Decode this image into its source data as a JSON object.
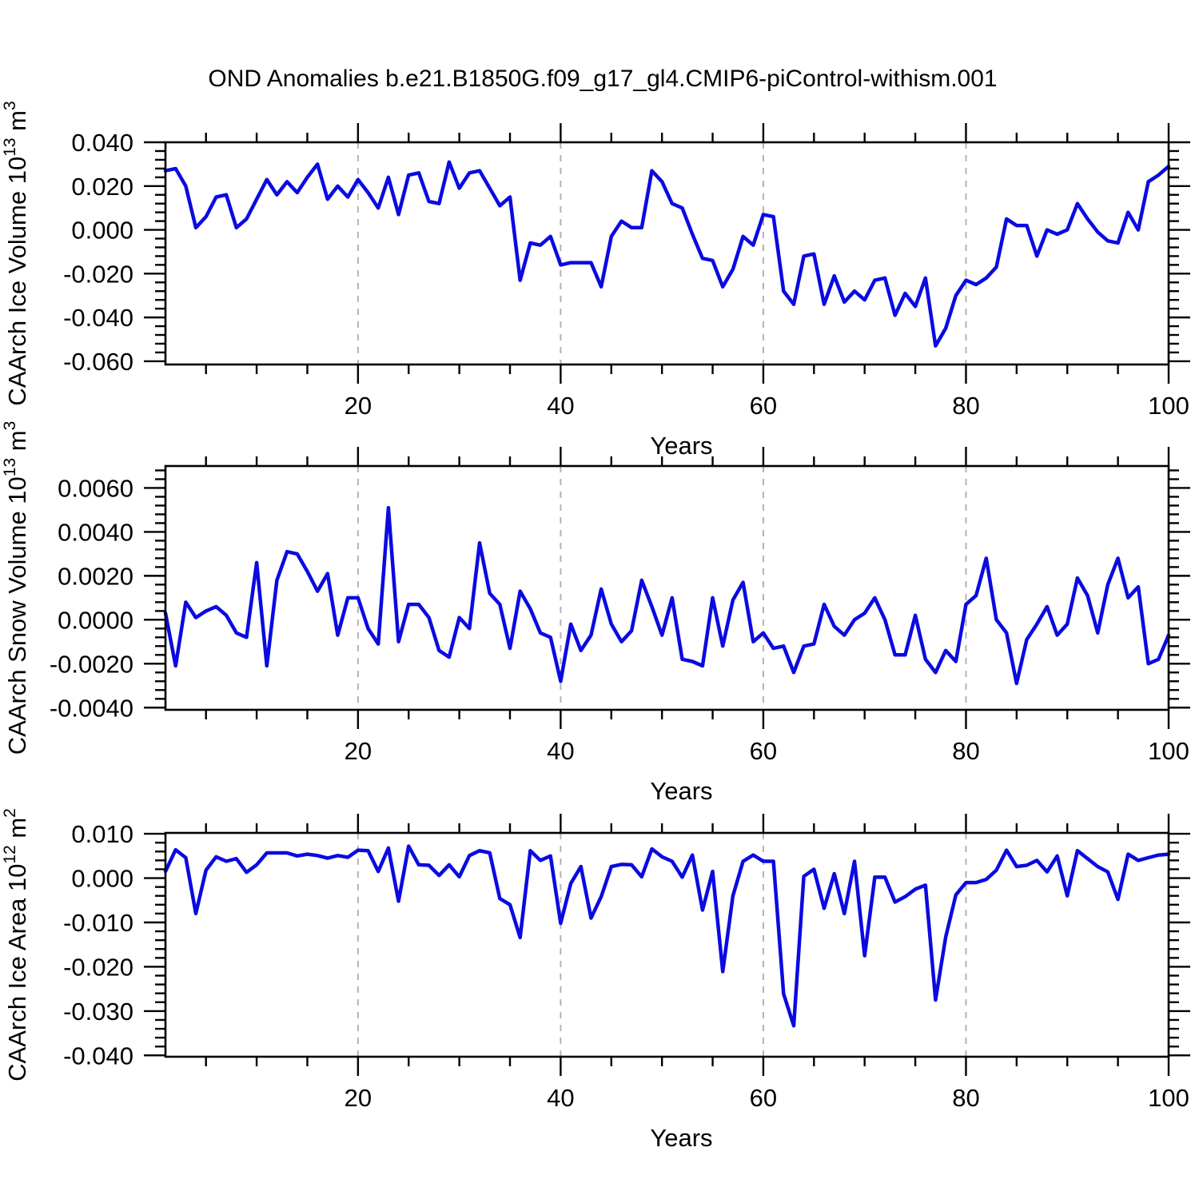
{
  "title": "OND Anomalies b.e21.B1850G.f09_g17_gl4.CMIP6-piControl-withism.001",
  "colors": {
    "line": "#0a0ae1",
    "grid": "#b3b3b3",
    "axis": "#000000",
    "background": "#ffffff"
  },
  "chart_data": [
    {
      "type": "line",
      "title": "",
      "xlabel": "Years",
      "ylabel_parts": {
        "pre": "CAArch Ice Volume 10",
        "sup1": "13",
        "mid": " m",
        "sup2": "3"
      },
      "x_start": 1,
      "x_step": 1,
      "xlim": [
        1,
        100
      ],
      "ylim": [
        -0.0615,
        0.04
      ],
      "ytick_major": [
        0.04,
        0.02,
        0.0,
        -0.02,
        -0.04,
        -0.06
      ],
      "ytick_minor_step": 0.004,
      "ytick_decimals": 3,
      "xtick_major": [
        20,
        40,
        60,
        80,
        100
      ],
      "xtick_minor_step": 5,
      "grid_x": [
        20,
        40,
        60,
        80
      ],
      "values": [
        0.027,
        0.028,
        0.02,
        0.001,
        0.006,
        0.015,
        0.016,
        0.001,
        0.005,
        0.014,
        0.023,
        0.016,
        0.022,
        0.017,
        0.024,
        0.03,
        0.014,
        0.02,
        0.015,
        0.023,
        0.017,
        0.01,
        0.024,
        0.007,
        0.025,
        0.026,
        0.013,
        0.012,
        0.031,
        0.019,
        0.026,
        0.027,
        0.019,
        0.011,
        0.015,
        -0.023,
        -0.006,
        -0.007,
        -0.003,
        -0.016,
        -0.015,
        -0.015,
        -0.015,
        -0.026,
        -0.003,
        0.004,
        0.001,
        0.001,
        0.027,
        0.022,
        0.012,
        0.01,
        -0.002,
        -0.013,
        -0.014,
        -0.026,
        -0.018,
        -0.003,
        -0.007,
        0.007,
        0.006,
        -0.028,
        -0.034,
        -0.012,
        -0.011,
        -0.034,
        -0.021,
        -0.033,
        -0.028,
        -0.032,
        -0.023,
        -0.022,
        -0.039,
        -0.029,
        -0.035,
        -0.022,
        -0.053,
        -0.045,
        -0.03,
        -0.023,
        -0.025,
        -0.022,
        -0.017,
        0.005,
        0.002,
        0.002,
        -0.012,
        0.0,
        -0.002,
        0.0,
        0.012,
        0.005,
        -0.001,
        -0.005,
        -0.006,
        0.008,
        0.0,
        0.022,
        0.025,
        0.029
      ]
    },
    {
      "type": "line",
      "title": "",
      "xlabel": "Years",
      "ylabel_parts": {
        "pre": "CAArch Snow Volume 10",
        "sup1": "13",
        "mid": " m",
        "sup2": "3"
      },
      "x_start": 1,
      "x_step": 1,
      "xlim": [
        1,
        100
      ],
      "ylim": [
        -0.0041,
        0.007
      ],
      "ytick_major": [
        0.006,
        0.004,
        0.002,
        0.0,
        -0.002,
        -0.004
      ],
      "ytick_minor_step": 0.0004,
      "ytick_decimals": 4,
      "xtick_major": [
        20,
        40,
        60,
        80,
        100
      ],
      "xtick_minor_step": 5,
      "grid_x": [
        20,
        40,
        60,
        80
      ],
      "values": [
        0.0003,
        -0.0021,
        0.0008,
        0.0001,
        0.0004,
        0.0006,
        0.0002,
        -0.0006,
        -0.0008,
        0.0026,
        -0.0021,
        0.0018,
        0.0031,
        0.003,
        0.0022,
        0.0013,
        0.0021,
        -0.0007,
        0.001,
        0.001,
        -0.0004,
        -0.0011,
        0.0051,
        -0.001,
        0.0007,
        0.0007,
        0.0001,
        -0.0014,
        -0.0017,
        0.0001,
        -0.0004,
        0.0035,
        0.0012,
        0.0007,
        -0.0013,
        0.0013,
        0.0005,
        -0.0006,
        -0.0008,
        -0.0028,
        -0.0002,
        -0.0014,
        -0.0007,
        0.0014,
        -0.0002,
        -0.001,
        -0.0005,
        0.0018,
        0.0006,
        -0.0007,
        0.001,
        -0.0018,
        -0.0019,
        -0.0021,
        0.001,
        -0.0012,
        0.0009,
        0.0017,
        -0.001,
        -0.0006,
        -0.0013,
        -0.0012,
        -0.0024,
        -0.0012,
        -0.0011,
        0.0007,
        -0.0003,
        -0.0007,
        0.0,
        0.0003,
        0.001,
        0.0,
        -0.0016,
        -0.0016,
        0.0002,
        -0.0018,
        -0.0024,
        -0.0014,
        -0.0019,
        0.0007,
        0.0011,
        0.0028,
        0.0,
        -0.0006,
        -0.0029,
        -0.0009,
        -0.0002,
        0.0006,
        -0.0007,
        -0.0002,
        0.0019,
        0.0011,
        -0.0006,
        0.0016,
        0.0028,
        0.001,
        0.0015,
        -0.002,
        -0.0018,
        -0.0007
      ]
    },
    {
      "type": "line",
      "title": "",
      "xlabel": "Years",
      "ylabel_parts": {
        "pre": "CAArch Ice Area 10",
        "sup1": "12",
        "mid": " m",
        "sup2": "2"
      },
      "x_start": 1,
      "x_step": 1,
      "xlim": [
        1,
        100
      ],
      "ylim": [
        -0.0403,
        0.0102
      ],
      "ytick_major": [
        0.01,
        0.0,
        -0.01,
        -0.02,
        -0.03,
        -0.04
      ],
      "ytick_minor_step": 0.002,
      "ytick_decimals": 3,
      "xtick_major": [
        20,
        40,
        60,
        80,
        100
      ],
      "xtick_minor_step": 5,
      "grid_x": [
        20,
        40,
        60,
        80
      ],
      "values": [
        0.0015,
        0.0064,
        0.0046,
        -0.008,
        0.0018,
        0.0048,
        0.0038,
        0.0044,
        0.0013,
        0.003,
        0.0057,
        0.0057,
        0.0057,
        0.005,
        0.0054,
        0.0051,
        0.0045,
        0.0051,
        0.0047,
        0.0063,
        0.0062,
        0.0015,
        0.0068,
        -0.0052,
        0.0072,
        0.003,
        0.0029,
        0.0006,
        0.003,
        0.0003,
        0.0051,
        0.0062,
        0.0057,
        -0.0046,
        -0.006,
        -0.0134,
        0.0062,
        0.004,
        0.005,
        -0.0102,
        -0.0012,
        0.0026,
        -0.009,
        -0.0042,
        0.0026,
        0.0031,
        0.003,
        0.0003,
        0.0066,
        0.0048,
        0.0038,
        0.0002,
        0.0052,
        -0.0072,
        0.0015,
        -0.0211,
        -0.004,
        0.0038,
        0.0052,
        0.0038,
        0.0038,
        -0.0261,
        -0.0333,
        0.0004,
        0.002,
        -0.0068,
        0.001,
        -0.008,
        0.0038,
        -0.0175,
        0.0002,
        0.0002,
        -0.0054,
        -0.0042,
        -0.0025,
        -0.0016,
        -0.0275,
        -0.0133,
        -0.0038,
        -0.001,
        -0.001,
        -0.0003,
        0.0018,
        0.0063,
        0.0026,
        0.0029,
        0.004,
        0.0014,
        0.005,
        -0.004,
        0.0062,
        0.0044,
        0.0026,
        0.0014,
        -0.0048,
        0.0054,
        0.004,
        0.0046,
        0.0052,
        0.0054
      ]
    }
  ],
  "layout_note": "three stacked line panels, shared x axis style, dashed gridlines at x=20,40,60,80"
}
